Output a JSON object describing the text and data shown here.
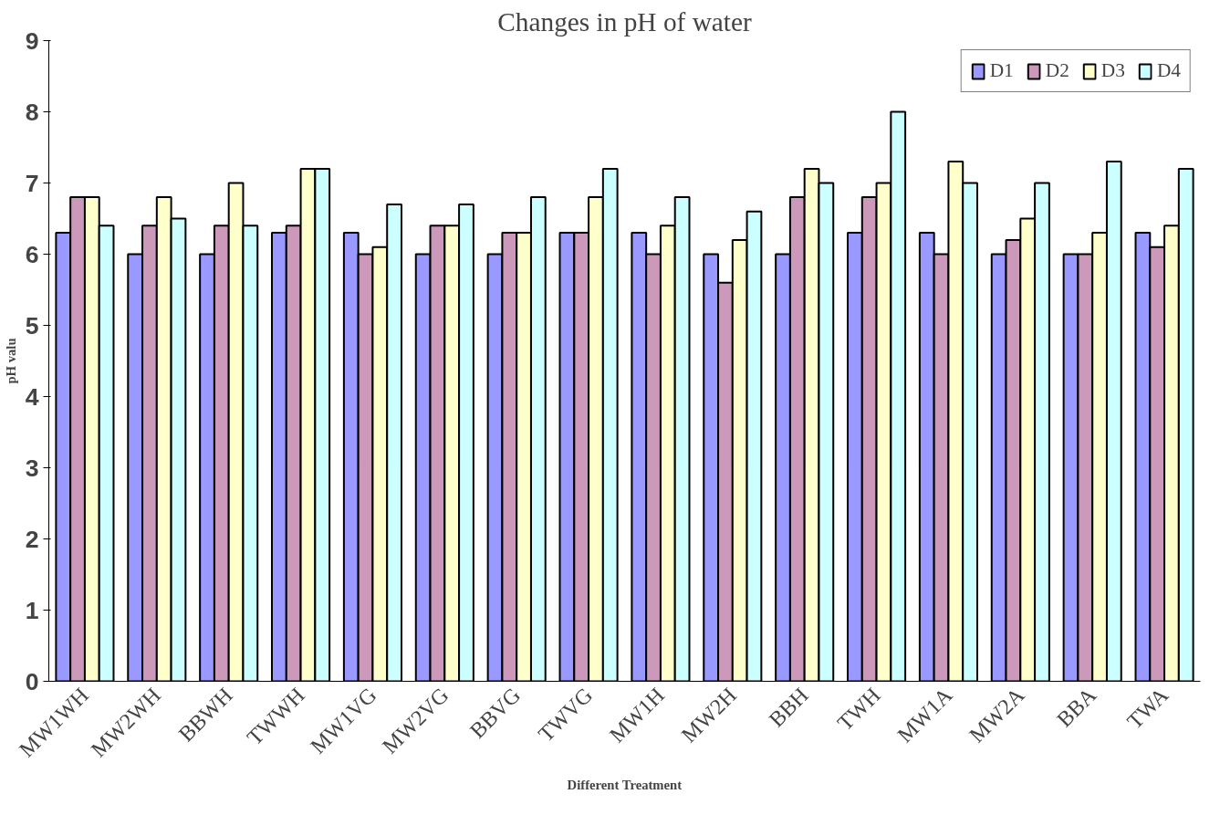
{
  "chart_data": {
    "type": "bar",
    "title": "Changes in pH of water",
    "xlabel": "Different Treatment",
    "ylabel": "pH valu",
    "categories": [
      "MW1WH",
      "MW2WH",
      "BBWH",
      "TWWH",
      "MW1VG",
      "MW2VG",
      "BBVG",
      "TWVG",
      "MW1H",
      "MW2H",
      "BBH",
      "TWH",
      "MW1A",
      "MW2A",
      "BBA",
      "TWA"
    ],
    "series": [
      {
        "name": "D1",
        "color": "#9999ff",
        "values": [
          6.3,
          6.0,
          6.0,
          6.3,
          6.3,
          6.0,
          6.0,
          6.3,
          6.3,
          6.0,
          6.0,
          6.3,
          6.3,
          6.0,
          6.0,
          6.3
        ]
      },
      {
        "name": "D2",
        "color": "#cc99bb",
        "values": [
          6.8,
          6.4,
          6.4,
          6.4,
          6.0,
          6.4,
          6.3,
          6.3,
          6.0,
          5.6,
          6.8,
          6.8,
          6.0,
          6.2,
          6.0,
          6.1
        ]
      },
      {
        "name": "D3",
        "color": "#ffffcc",
        "values": [
          6.8,
          6.8,
          7.0,
          7.2,
          6.1,
          6.4,
          6.3,
          6.8,
          6.4,
          6.2,
          7.2,
          7.0,
          7.3,
          6.5,
          6.3,
          6.4
        ]
      },
      {
        "name": "D4",
        "color": "#ccffff",
        "values": [
          6.4,
          6.5,
          6.4,
          7.2,
          6.7,
          6.7,
          6.8,
          7.2,
          6.8,
          6.6,
          7.0,
          8.0,
          7.0,
          7.0,
          7.3,
          7.2
        ]
      }
    ],
    "ylim": [
      0,
      9
    ],
    "yticks": [
      0,
      1,
      2,
      3,
      4,
      5,
      6,
      7,
      8,
      9
    ],
    "grid": false,
    "legend": "top right"
  }
}
